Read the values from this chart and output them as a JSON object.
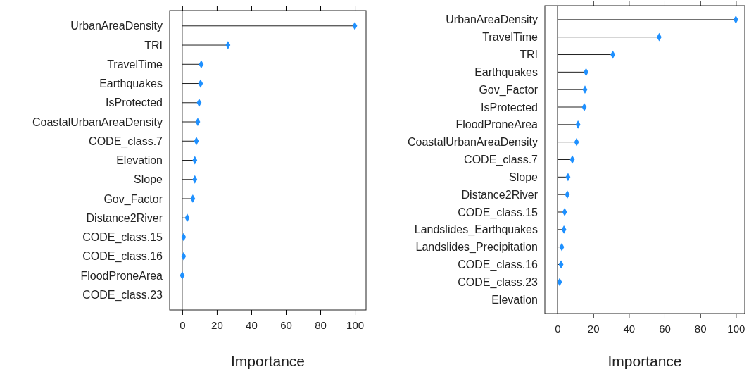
{
  "chart_data": [
    {
      "type": "lollipop",
      "orientation": "horizontal",
      "xlabel": "Importance",
      "categories": [
        "UrbanAreaDensity",
        "TRI",
        "TravelTime",
        "Earthquakes",
        "IsProtected",
        "CoastalUrbanAreaDensity",
        "CODE_class.7",
        "Elevation",
        "Slope",
        "Gov_Factor",
        "Distance2River",
        "CODE_class.15",
        "CODE_class.16",
        "FloodProneArea",
        "CODE_class.23"
      ],
      "values": [
        100,
        26.5,
        11,
        10.6,
        9.8,
        9,
        8.2,
        7.3,
        7.3,
        6.1,
        2.9,
        0.8,
        0.8,
        0,
        null
      ],
      "color": "#1e90ff",
      "marker": "diamond",
      "xlim": [
        -7.3,
        106.5
      ],
      "xticks": [
        0,
        20,
        40,
        60,
        80,
        100
      ]
    },
    {
      "type": "lollipop",
      "orientation": "horizontal",
      "xlabel": "Importance",
      "categories": [
        "UrbanAreaDensity",
        "TravelTime",
        "TRI",
        "Earthquakes",
        "Gov_Factor",
        "IsProtected",
        "FloodProneArea",
        "CoastalUrbanAreaDensity",
        "CODE_class.7",
        "Slope",
        "Distance2River",
        "CODE_class.15",
        "Landslides_Earthquakes",
        "Landslides_Precipitation",
        "CODE_class.16",
        "CODE_class.23",
        "Elevation"
      ],
      "values": [
        100,
        57,
        31,
        16,
        15.4,
        15,
        11.5,
        10.7,
        8.3,
        5.9,
        5.5,
        4,
        3.6,
        2.4,
        2,
        1.2,
        null
      ],
      "color": "#1e90ff",
      "marker": "diamond",
      "xlim": [
        -7.1,
        105
      ],
      "xticks": [
        0,
        20,
        40,
        60,
        80,
        100
      ]
    }
  ]
}
